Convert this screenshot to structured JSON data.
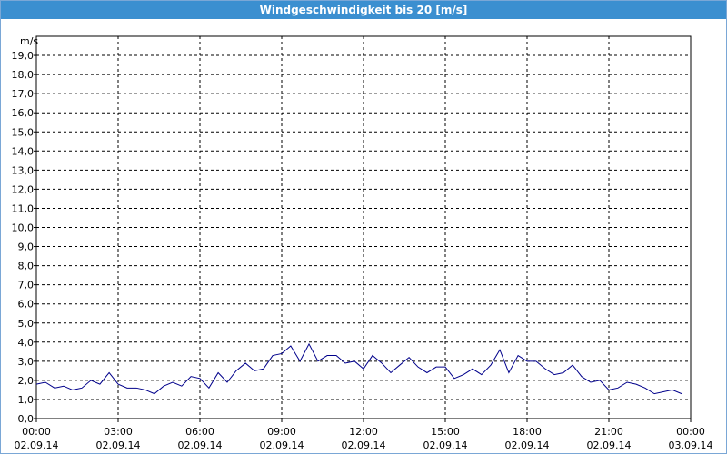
{
  "title": "Windgeschwindigkeit bis 20 [m/s]",
  "chart_data": {
    "type": "line",
    "y_label": "m/s",
    "x": [
      0,
      0.33,
      0.67,
      1,
      1.33,
      1.67,
      2,
      2.33,
      2.67,
      3,
      3.33,
      3.67,
      4,
      4.33,
      4.67,
      5,
      5.33,
      5.67,
      6,
      6.33,
      6.67,
      7,
      7.33,
      7.67,
      8,
      8.33,
      8.67,
      9,
      9.33,
      9.67,
      10,
      10.33,
      10.67,
      11,
      11.33,
      11.67,
      12,
      12.33,
      12.67,
      13,
      13.33,
      13.67,
      14,
      14.33,
      14.67,
      15,
      15.33,
      15.67,
      16,
      16.33,
      16.67,
      17,
      17.33,
      17.67,
      18,
      18.33,
      18.67,
      19,
      19.33,
      19.67,
      20,
      20.33,
      20.67,
      21,
      21.33,
      21.67,
      22,
      22.33,
      22.67,
      23,
      23.33,
      23.67
    ],
    "series": [
      {
        "color": "#00008b",
        "values": [
          1.8,
          1.9,
          1.6,
          1.7,
          1.5,
          1.6,
          2.0,
          1.8,
          2.4,
          1.8,
          1.6,
          1.6,
          1.5,
          1.3,
          1.7,
          1.9,
          1.7,
          2.2,
          2.1,
          1.6,
          2.4,
          1.9,
          2.5,
          2.9,
          2.5,
          2.6,
          3.3,
          3.4,
          3.8,
          3.0,
          3.9,
          3.0,
          3.3,
          3.3,
          2.9,
          3.0,
          2.6,
          3.3,
          2.9,
          2.4,
          2.8,
          3.2,
          2.7,
          2.4,
          2.7,
          2.7,
          2.1,
          2.3,
          2.6,
          2.3,
          2.8,
          3.6,
          2.4,
          3.3,
          3.0,
          3.0,
          2.6,
          2.3,
          2.4,
          2.8,
          2.2,
          1.9,
          2.0,
          1.5,
          1.6,
          1.9,
          1.8,
          1.6,
          1.3,
          1.4,
          1.5,
          1.3
        ]
      }
    ],
    "xlim": [
      0,
      24
    ],
    "xticks": [
      {
        "value": 0,
        "label": "00:00"
      },
      {
        "value": 3,
        "label": "03:00"
      },
      {
        "value": 6,
        "label": "06:00"
      },
      {
        "value": 9,
        "label": "09:00"
      },
      {
        "value": 12,
        "label": "12:00"
      },
      {
        "value": 15,
        "label": "15:00"
      },
      {
        "value": 18,
        "label": "18:00"
      },
      {
        "value": 21,
        "label": "21:00"
      },
      {
        "value": 24,
        "label": "00:00"
      }
    ],
    "xtick_dates": [
      "02.09.14",
      "02.09.14",
      "02.09.14",
      "02.09.14",
      "02.09.14",
      "02.09.14",
      "02.09.14",
      "02.09.14",
      "03.09.14"
    ],
    "ylim": [
      0,
      20
    ],
    "yticks": [
      {
        "value": 0,
        "label": "0,0"
      },
      {
        "value": 1,
        "label": "1,0"
      },
      {
        "value": 2,
        "label": "2,0"
      },
      {
        "value": 3,
        "label": "3,0"
      },
      {
        "value": 4,
        "label": "4,0"
      },
      {
        "value": 5,
        "label": "5,0"
      },
      {
        "value": 6,
        "label": "6,0"
      },
      {
        "value": 7,
        "label": "7,0"
      },
      {
        "value": 8,
        "label": "8,0"
      },
      {
        "value": 9,
        "label": "9,0"
      },
      {
        "value": 10,
        "label": "10,0"
      },
      {
        "value": 11,
        "label": "11,0"
      },
      {
        "value": 12,
        "label": "12,0"
      },
      {
        "value": 13,
        "label": "13,0"
      },
      {
        "value": 14,
        "label": "14,0"
      },
      {
        "value": 15,
        "label": "15,0"
      },
      {
        "value": 16,
        "label": "16,0"
      },
      {
        "value": 17,
        "label": "17,0"
      },
      {
        "value": 18,
        "label": "18,0"
      },
      {
        "value": 19,
        "label": "19,0"
      }
    ],
    "grid": true
  }
}
